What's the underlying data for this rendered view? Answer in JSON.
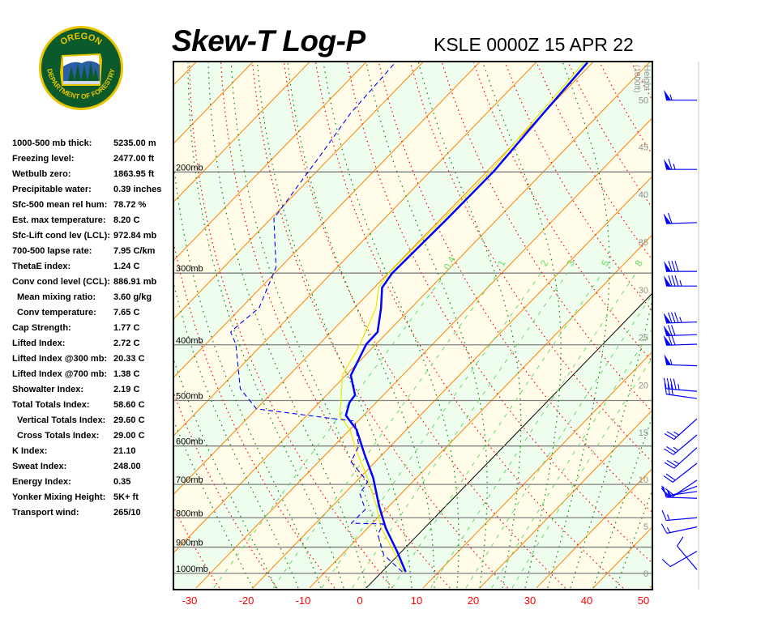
{
  "header": {
    "title": "Skew-T Log-P",
    "station_time": "KSLE 0000Z 15 APR 22"
  },
  "logo": {
    "top_text": "OREGON",
    "bottom_text": "DEPARTMENT OF FORESTRY",
    "colors": {
      "green": "#0b5a2b",
      "gold": "#e9c400",
      "blue": "#1f4e9a"
    }
  },
  "stats": [
    {
      "label": "1000-500 mb thick:",
      "value": "5235.00 m"
    },
    {
      "label": "Freezing level:",
      "value": "2477.00 ft"
    },
    {
      "label": "Wetbulb zero:",
      "value": "1863.95 ft"
    },
    {
      "label": "Precipitable water:",
      "value": "0.39 inches"
    },
    {
      "label": "Sfc-500 mean rel hum:",
      "value": "78.72 %"
    },
    {
      "label": "Est. max temperature:",
      "value": "8.20 C"
    },
    {
      "label": "Sfc-Lift cond lev (LCL):",
      "value": "972.84 mb"
    },
    {
      "label": "700-500 lapse rate:",
      "value": "7.95 C/km"
    },
    {
      "label": "ThetaE index:",
      "value": "1.24 C"
    },
    {
      "label": "Conv cond level (CCL):",
      "value": "886.91 mb"
    },
    {
      "label": "Mean mixing ratio:",
      "value": "3.60 g/kg",
      "sub": true
    },
    {
      "label": "Conv temperature:",
      "value": "7.65 C",
      "sub": true
    },
    {
      "label": "Cap Strength:",
      "value": "1.77 C"
    },
    {
      "label": "Lifted Index:",
      "value": "2.72 C"
    },
    {
      "label": "Lifted Index @300 mb:",
      "value": "20.33 C"
    },
    {
      "label": "Lifted Index @700 mb:",
      "value": "1.38 C"
    },
    {
      "label": "Showalter Index:",
      "value": "2.19 C"
    },
    {
      "label": "Total Totals Index:",
      "value": "58.60 C"
    },
    {
      "label": "Vertical Totals Index:",
      "value": "29.60 C",
      "sub": true
    },
    {
      "label": "Cross Totals Index:",
      "value": "29.00 C",
      "sub": true
    },
    {
      "label": "K Index:",
      "value": "21.10"
    },
    {
      "label": "Sweat Index:",
      "value": "248.00"
    },
    {
      "label": "Energy Index:",
      "value": "0.35"
    },
    {
      "label": "Yonker Mixing Height:",
      "value": "5K+ ft"
    },
    {
      "label": "Transport wind:",
      "value": "265/10"
    }
  ],
  "chart_data": {
    "type": "line",
    "subtype": "skew-t log-p",
    "x_axis": {
      "unit": "C",
      "ticks": [
        -30,
        -20,
        -10,
        0,
        10,
        20,
        30,
        40,
        50
      ],
      "tick_labels": [
        "-30",
        "-20",
        "-10",
        "0",
        "10",
        "20",
        "30",
        "40",
        "50"
      ],
      "tick_color": "#ff0000"
    },
    "y_axis": {
      "scale": "log",
      "unit": "mb",
      "range": [
        1000,
        128
      ],
      "ticks": [
        200,
        300,
        400,
        500,
        600,
        700,
        800,
        900,
        1000
      ],
      "tick_labels": [
        "200mb",
        "300mb",
        "400mb",
        "500mb",
        "600mb",
        "700mb",
        "800mb",
        "900mb",
        "1000mb"
      ]
    },
    "height_axis": {
      "title": "Height",
      "unit_label": "(1000ft)",
      "ticks": [
        "0",
        "5",
        "10",
        "15",
        "20",
        "25",
        "30",
        "35",
        "40",
        "45",
        "50"
      ],
      "tick_pressures": [
        1000,
        829,
        686,
        568,
        470,
        388,
        321,
        265,
        219,
        181,
        150
      ]
    },
    "mixing_ratio_labels": [
      "0.4",
      "1",
      "2",
      "3",
      "5",
      "8"
    ],
    "mixing_ratio_values": [
      0.4,
      1,
      2,
      3,
      5,
      8,
      12,
      16,
      20
    ],
    "grid": true,
    "colors": {
      "temperature": "#0000ff",
      "dewpoint": "#0000ff",
      "wetbulb": "#e8e800",
      "isotherm": "#ff8000",
      "zero_isotherm": "#000000",
      "dry_adiabat": "#ff0000",
      "moist_adiabat": "#008000",
      "mixing_ratio": "#66dd66",
      "isobar": "#808080",
      "band_a": "#effdef",
      "band_b": "#fffde9"
    },
    "series": [
      {
        "key": "temperature",
        "style": "solid-thick",
        "points": [
          [
            994,
            4.2
          ],
          [
            913,
            -1.0
          ],
          [
            834,
            -6.8
          ],
          [
            764,
            -11.7
          ],
          [
            682,
            -17.6
          ],
          [
            618,
            -23.4
          ],
          [
            562,
            -28.8
          ],
          [
            531,
            -33.1
          ],
          [
            504,
            -34.7
          ],
          [
            489,
            -35.0
          ],
          [
            452,
            -39.1
          ],
          [
            399,
            -41.7
          ],
          [
            380,
            -41.8
          ],
          [
            345,
            -45.3
          ],
          [
            318,
            -48.6
          ],
          [
            300,
            -49.3
          ],
          [
            241,
            -48.9
          ],
          [
            200,
            -48.8
          ],
          [
            158,
            -50.0
          ],
          [
            129,
            -50.9
          ]
        ]
      },
      {
        "key": "wetbulb",
        "style": "solid-thin",
        "points": [
          [
            994,
            3.8
          ],
          [
            913,
            -1.6
          ],
          [
            834,
            -7.6
          ],
          [
            764,
            -12.2
          ],
          [
            682,
            -18.6
          ],
          [
            618,
            -24.6
          ],
          [
            562,
            -30.0
          ],
          [
            531,
            -34.2
          ],
          [
            504,
            -36.2
          ],
          [
            452,
            -40.6
          ],
          [
            399,
            -42.8
          ],
          [
            345,
            -46.2
          ],
          [
            318,
            -49.2
          ],
          [
            300,
            -49.9
          ],
          [
            241,
            -49.6
          ],
          [
            200,
            -49.4
          ],
          [
            158,
            -50.6
          ],
          [
            129,
            -51.5
          ]
        ]
      },
      {
        "key": "dewpoint",
        "style": "dashed",
        "points": [
          [
            994,
            3.6
          ],
          [
            928,
            -2.6
          ],
          [
            856,
            -7.1
          ],
          [
            820,
            -8.0
          ],
          [
            818,
            -13.7
          ],
          [
            774,
            -13.6
          ],
          [
            726,
            -17.3
          ],
          [
            693,
            -17.9
          ],
          [
            639,
            -24.3
          ],
          [
            600,
            -25.6
          ],
          [
            543,
            -30.6
          ],
          [
            537,
            -35.3
          ],
          [
            517,
            -50.0
          ],
          [
            477,
            -56.3
          ],
          [
            399,
            -64.7
          ],
          [
            380,
            -67.7
          ],
          [
            368,
            -67.5
          ],
          [
            345,
            -66.8
          ],
          [
            293,
            -70.8
          ],
          [
            241,
            -79.5
          ],
          [
            189,
            -82.0
          ],
          [
            158,
            -84.0
          ],
          [
            122,
            -85.0
          ]
        ]
      }
    ],
    "winds": [
      {
        "p": 150,
        "dir": 270,
        "kt": 55
      },
      {
        "p": 198,
        "dir": 270,
        "kt": 65
      },
      {
        "p": 245,
        "dir": 268,
        "kt": 60
      },
      {
        "p": 298,
        "dir": 270,
        "kt": 80
      },
      {
        "p": 316,
        "dir": 270,
        "kt": 85
      },
      {
        "p": 365,
        "dir": 268,
        "kt": 85
      },
      {
        "p": 384,
        "dir": 268,
        "kt": 70
      },
      {
        "p": 399,
        "dir": 268,
        "kt": 70
      },
      {
        "p": 435,
        "dir": 272,
        "kt": 55
      },
      {
        "p": 482,
        "dir": 275,
        "kt": 45
      },
      {
        "p": 496,
        "dir": 278,
        "kt": 30
      },
      {
        "p": 538,
        "dir": 228,
        "kt": 25
      },
      {
        "p": 574,
        "dir": 230,
        "kt": 25
      },
      {
        "p": 604,
        "dir": 228,
        "kt": 25
      },
      {
        "p": 643,
        "dir": 232,
        "kt": 20
      },
      {
        "p": 688,
        "dir": 236,
        "kt": 20
      },
      {
        "p": 705,
        "dir": 250,
        "kt": 15
      },
      {
        "p": 720,
        "dir": 262,
        "kt": 15
      },
      {
        "p": 740,
        "dir": 272,
        "kt": 15
      },
      {
        "p": 800,
        "dir": 265,
        "kt": 15
      },
      {
        "p": 830,
        "dir": 258,
        "kt": 15
      },
      {
        "p": 915,
        "dir": 240,
        "kt": 10
      },
      {
        "p": 985,
        "dir": 320,
        "kt": 10
      }
    ]
  }
}
